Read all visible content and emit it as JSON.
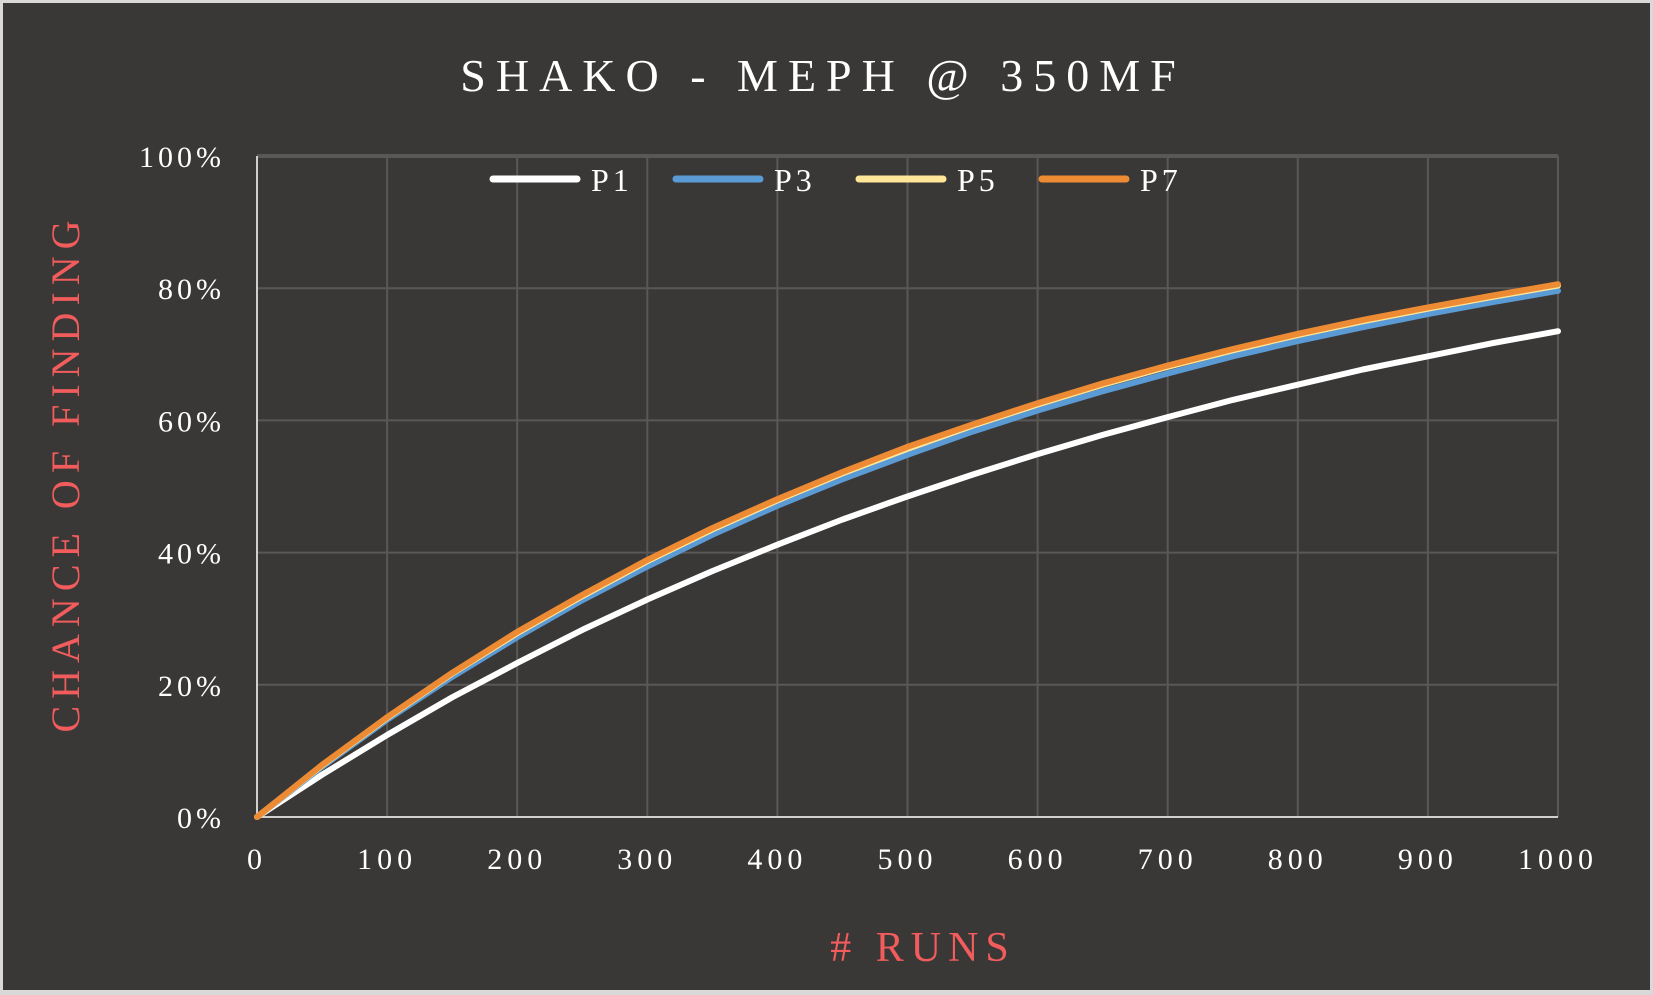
{
  "chart_data": {
    "type": "line",
    "title": "SHAKO - MEPH @ 350MF",
    "xlabel": "# RUNS",
    "ylabel": "CHANCE OF FINDING",
    "xlim": [
      0,
      1000
    ],
    "ylim": [
      0,
      100
    ],
    "xticks": [
      "0",
      "100",
      "200",
      "300",
      "400",
      "500",
      "600",
      "700",
      "800",
      "900",
      "1000"
    ],
    "yticks": [
      "0%",
      "20%",
      "40%",
      "60%",
      "80%",
      "100%"
    ],
    "grid": true,
    "legend_position": "top",
    "x": [
      0,
      50,
      100,
      150,
      200,
      250,
      300,
      350,
      400,
      450,
      500,
      550,
      600,
      650,
      700,
      750,
      800,
      850,
      900,
      950,
      1000
    ],
    "series": [
      {
        "name": "P1",
        "color": "#ffffff",
        "values": [
          0,
          6.4,
          12.4,
          18.1,
          23.3,
          28.3,
          32.9,
          37.2,
          41.2,
          45.0,
          48.5,
          51.8,
          54.9,
          57.8,
          60.5,
          63.1,
          65.4,
          67.7,
          69.7,
          71.7,
          73.5
        ]
      },
      {
        "name": "P3",
        "color": "#5b9bd5",
        "values": [
          0,
          7.6,
          14.7,
          21.2,
          27.2,
          32.8,
          37.9,
          42.7,
          47.1,
          51.1,
          54.8,
          58.3,
          61.5,
          64.4,
          67.1,
          69.7,
          72.0,
          74.1,
          76.1,
          77.9,
          79.6
        ]
      },
      {
        "name": "P5",
        "color": "#ffe699",
        "values": [
          0,
          7.8,
          15.0,
          21.7,
          27.8,
          33.4,
          38.7,
          43.5,
          47.9,
          52.0,
          55.7,
          59.2,
          62.4,
          65.4,
          68.1,
          70.6,
          72.9,
          75.0,
          76.9,
          78.7,
          80.4
        ]
      },
      {
        "name": "P7",
        "color": "#ed8b34",
        "values": [
          0,
          7.9,
          15.1,
          21.8,
          28.0,
          33.6,
          38.9,
          43.7,
          48.1,
          52.2,
          56.0,
          59.4,
          62.6,
          65.6,
          68.3,
          70.8,
          73.1,
          75.2,
          77.1,
          78.9,
          80.6
        ]
      }
    ],
    "colors": {
      "background": "#3a3836",
      "grid": "#5a5856",
      "axis_title": "#f25c5c",
      "text": "#ffffff"
    }
  }
}
